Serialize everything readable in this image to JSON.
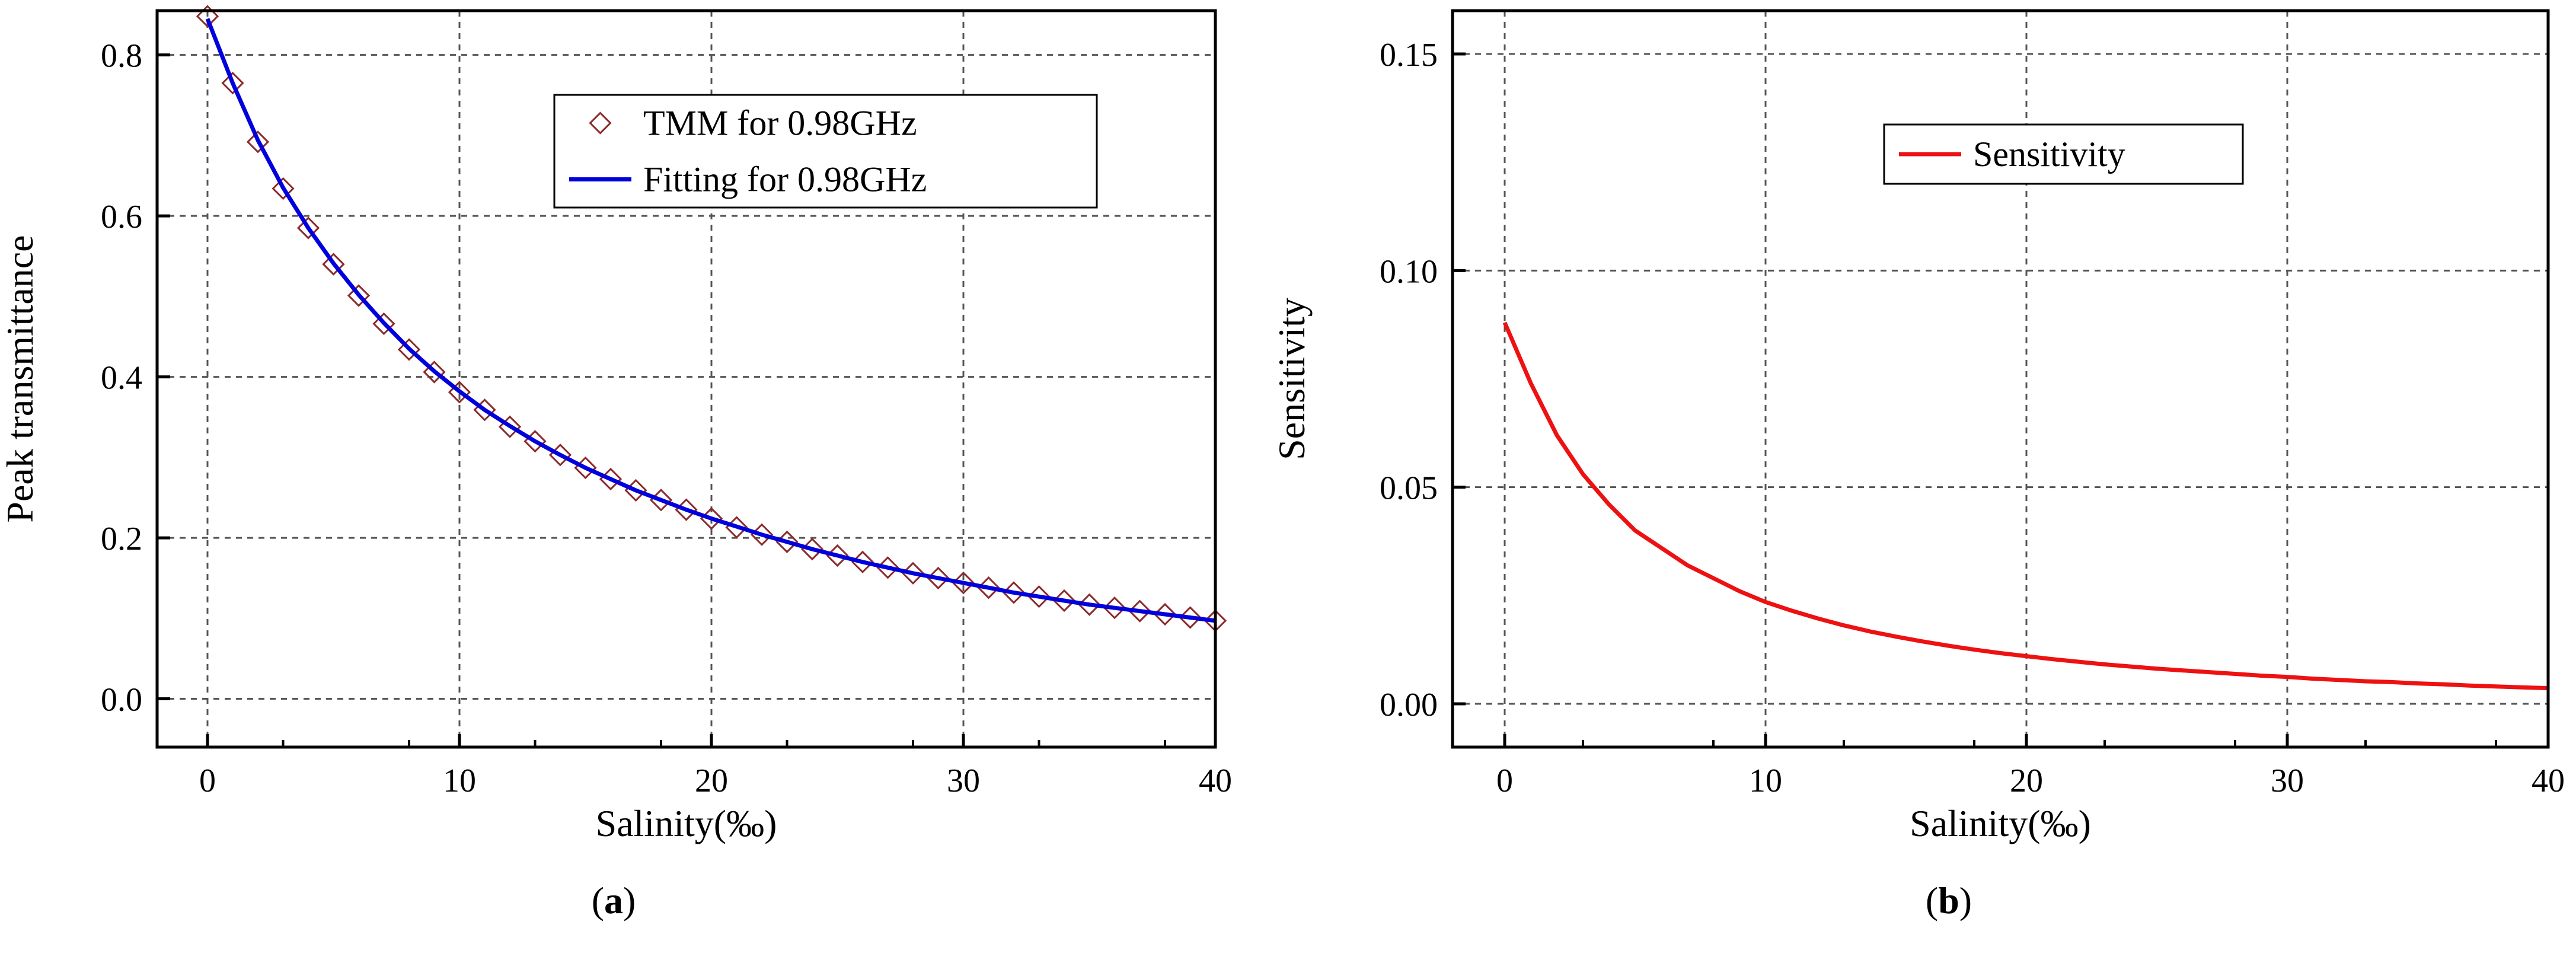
{
  "chart_data": [
    {
      "type": "line",
      "panel_label": "a",
      "xlabel": "Salinity(‰)",
      "ylabel": "Peak transmittance",
      "xlim": [
        -2,
        40
      ],
      "ylim": [
        -0.06,
        0.855
      ],
      "xticks": [
        0,
        10,
        20,
        30,
        40
      ],
      "yticks": [
        0.0,
        0.2,
        0.4,
        0.6,
        0.8
      ],
      "ytick_labels": [
        "0.0",
        "0.2",
        "0.4",
        "0.6",
        "0.8"
      ],
      "grid": true,
      "legend_position": "upper-right",
      "series": [
        {
          "name": "TMM for 0.98GHz",
          "style": "diamond-markers",
          "color": "#8b2a2a",
          "x": [
            0,
            1,
            2,
            3,
            4,
            5,
            6,
            7,
            8,
            9,
            10,
            11,
            12,
            13,
            14,
            15,
            16,
            17,
            18,
            19,
            20,
            21,
            22,
            23,
            24,
            25,
            26,
            27,
            28,
            29,
            30,
            31,
            32,
            33,
            34,
            35,
            36,
            37,
            38,
            39,
            40
          ],
          "y": [
            0.848,
            0.765,
            0.692,
            0.634,
            0.585,
            0.54,
            0.501,
            0.466,
            0.434,
            0.406,
            0.381,
            0.359,
            0.338,
            0.32,
            0.303,
            0.287,
            0.273,
            0.259,
            0.247,
            0.235,
            0.224,
            0.213,
            0.204,
            0.195,
            0.186,
            0.178,
            0.17,
            0.163,
            0.156,
            0.15,
            0.144,
            0.138,
            0.132,
            0.127,
            0.122,
            0.117,
            0.113,
            0.109,
            0.105,
            0.101,
            0.097
          ]
        },
        {
          "name": "Fitting for 0.98GHz",
          "style": "solid-line",
          "color": "#0000dd",
          "x": [
            0,
            1,
            2,
            3,
            4,
            5,
            6,
            7,
            8,
            9,
            10,
            11,
            12,
            13,
            14,
            15,
            16,
            17,
            18,
            19,
            20,
            21,
            22,
            23,
            24,
            25,
            26,
            27,
            28,
            29,
            30,
            31,
            32,
            33,
            34,
            35,
            36,
            37,
            38,
            39,
            40
          ],
          "y": [
            0.845,
            0.765,
            0.694,
            0.635,
            0.585,
            0.541,
            0.502,
            0.467,
            0.435,
            0.407,
            0.382,
            0.359,
            0.339,
            0.32,
            0.303,
            0.287,
            0.273,
            0.259,
            0.247,
            0.235,
            0.224,
            0.214,
            0.204,
            0.195,
            0.186,
            0.178,
            0.17,
            0.163,
            0.156,
            0.15,
            0.144,
            0.138,
            0.132,
            0.127,
            0.122,
            0.117,
            0.113,
            0.109,
            0.105,
            0.101,
            0.097
          ]
        }
      ]
    },
    {
      "type": "line",
      "panel_label": "b",
      "xlabel": "Salinity(‰)",
      "ylabel": "Sensitivity",
      "xlim": [
        -2,
        40
      ],
      "ylim": [
        -0.01,
        0.16
      ],
      "xticks": [
        0,
        10,
        20,
        30,
        40
      ],
      "yticks": [
        0.0,
        0.05,
        0.1,
        0.15
      ],
      "ytick_labels": [
        "0.00",
        "0.05",
        "0.10",
        "0.15"
      ],
      "grid": true,
      "legend_position": "upper-right",
      "series": [
        {
          "name": "Sensitivity",
          "style": "solid-line",
          "color": "#ee1111",
          "x": [
            0,
            1,
            2,
            3,
            4,
            5,
            6,
            7,
            8,
            9,
            10,
            11,
            12,
            13,
            14,
            15,
            16,
            17,
            18,
            19,
            20,
            21,
            22,
            23,
            24,
            25,
            26,
            27,
            28,
            29,
            30,
            31,
            32,
            33,
            34,
            35,
            36,
            37,
            38,
            39,
            40
          ],
          "y": [
            0.088,
            0.074,
            0.062,
            0.053,
            0.046,
            0.04,
            0.036,
            0.032,
            0.029,
            0.026,
            0.0235,
            0.0215,
            0.0197,
            0.0181,
            0.0167,
            0.0155,
            0.0144,
            0.0134,
            0.0125,
            0.0117,
            0.011,
            0.0103,
            0.0097,
            0.0091,
            0.0086,
            0.0081,
            0.0077,
            0.0073,
            0.0069,
            0.0065,
            0.0062,
            0.0058,
            0.0055,
            0.0052,
            0.005,
            0.0047,
            0.0045,
            0.0042,
            0.004,
            0.0038,
            0.0036
          ]
        }
      ]
    }
  ]
}
